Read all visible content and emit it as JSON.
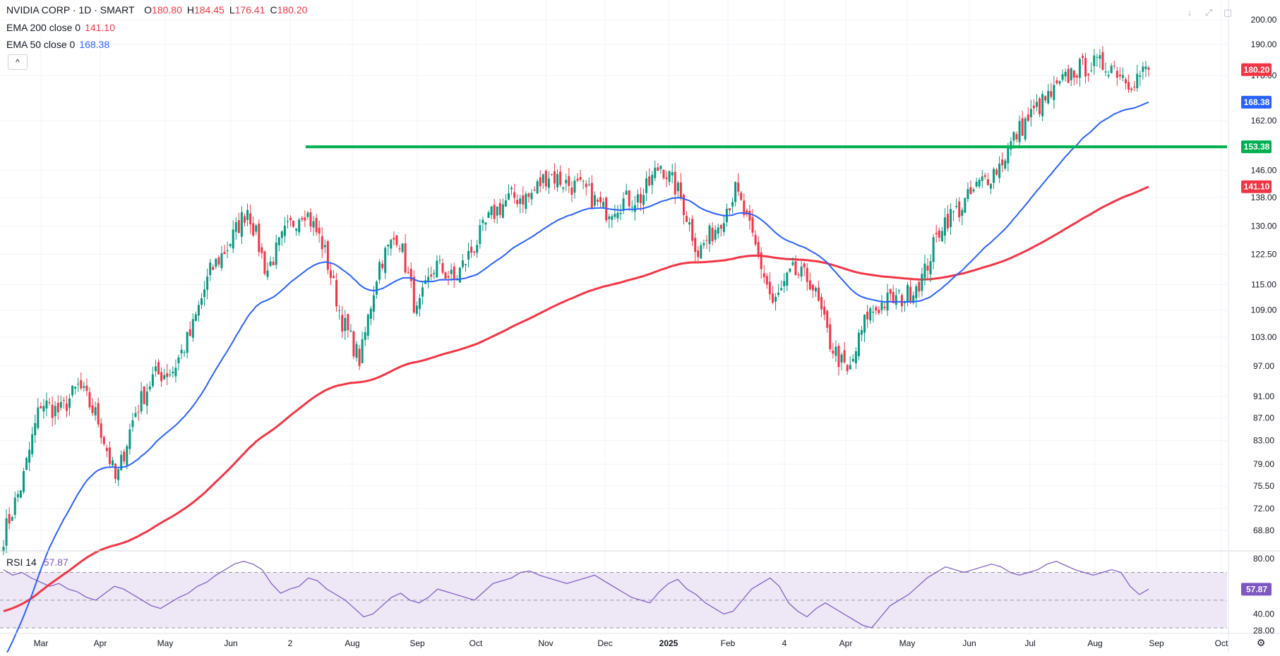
{
  "header": {
    "title": "NVIDIA CORP · 1D · SMART",
    "ohlc": [
      {
        "k": "O",
        "v": "180.80"
      },
      {
        "k": "H",
        "v": "184.45"
      },
      {
        "k": "L",
        "v": "176.41"
      },
      {
        "k": "C",
        "v": "180.20"
      }
    ],
    "indicators": [
      {
        "label": "EMA 200 close 0",
        "value": "141.10",
        "color": "#f23645"
      },
      {
        "label": "EMA 50 close 0",
        "value": "168.38",
        "color": "#2962ff"
      }
    ],
    "collapse_glyph": "^",
    "buttons": [
      {
        "name": "arrow-down-icon",
        "glyph": "↓"
      },
      {
        "name": "maximize-icon",
        "glyph": "⤢"
      },
      {
        "name": "restore-icon",
        "glyph": "▢"
      }
    ]
  },
  "rsi": {
    "label": "RSI 14",
    "value": "57.87"
  },
  "colors": {
    "up": "#089981",
    "down": "#f23645",
    "ema200": "#f23645",
    "ema50": "#2962ff",
    "level": "#00b050",
    "rsi": "#7e57c2",
    "rsi_band": "#ede7f6",
    "grid": "#f0f3fa",
    "axis_text": "#131722"
  },
  "chart_data": [
    {
      "type": "candlestick",
      "title": "NVIDIA CORP · 1D · SMART",
      "x_ticks": [
        "Mar",
        "Apr",
        "May",
        "Jun",
        "2",
        "Aug",
        "Sep",
        "Oct",
        "Nov",
        "Dec",
        "2025",
        "Feb",
        "4",
        "Apr",
        "May",
        "Jun",
        "Jul",
        "Aug",
        "Sep",
        "Oct"
      ],
      "y_ticks": [
        200.0,
        190.0,
        178.0,
        162.0,
        146.0,
        138.0,
        130.0,
        122.5,
        115.0,
        109.0,
        103.0,
        97.0,
        91.0,
        87.0,
        83.0,
        79.0,
        75.5,
        72.0,
        68.8
      ],
      "y_scale": "log",
      "ylim": [
        66.0,
        203.0
      ],
      "price_anchors": [
        [
          "Mar",
          68
        ],
        [
          "Mar",
          76
        ],
        [
          "Mar",
          90
        ],
        [
          "Mar",
          88
        ],
        [
          "Apr",
          93
        ],
        [
          "Apr",
          87
        ],
        [
          "Apr",
          76
        ],
        [
          "May",
          88
        ],
        [
          "May",
          95
        ],
        [
          "May",
          96
        ],
        [
          "Jun",
          104
        ],
        [
          "Jun",
          118
        ],
        [
          "Jun",
          125
        ],
        [
          "Jun",
          135
        ],
        [
          "2",
          118
        ],
        [
          "2",
          128
        ],
        [
          "2",
          135
        ],
        [
          "2",
          125
        ],
        [
          "Aug",
          107
        ],
        [
          "Aug",
          98
        ],
        [
          "Aug",
          120
        ],
        [
          "Aug",
          128
        ],
        [
          "Sep",
          108
        ],
        [
          "Sep",
          120
        ],
        [
          "Sep",
          116
        ],
        [
          "Oct",
          124
        ],
        [
          "Oct",
          133
        ],
        [
          "Oct",
          138
        ],
        [
          "Nov",
          138
        ],
        [
          "Nov",
          145
        ],
        [
          "Nov",
          142
        ],
        [
          "Dec",
          140
        ],
        [
          "Dec",
          134
        ],
        [
          "Dec",
          137
        ],
        [
          "2025",
          138
        ],
        [
          "2025",
          148
        ],
        [
          "2025",
          139
        ],
        [
          "Feb",
          123
        ],
        [
          "Feb",
          130
        ],
        [
          "Feb",
          140
        ],
        [
          "Feb",
          125
        ],
        [
          "4",
          110
        ],
        [
          "4",
          118
        ],
        [
          "4",
          116
        ],
        [
          "Apr",
          102
        ],
        [
          "Apr",
          95
        ],
        [
          "Apr",
          108
        ],
        [
          "Apr",
          111
        ],
        [
          "May",
          112
        ],
        [
          "May",
          117
        ],
        [
          "May",
          131
        ],
        [
          "Jun",
          135
        ],
        [
          "Jun",
          142
        ],
        [
          "Jun",
          147
        ],
        [
          "Jul",
          158
        ],
        [
          "Jul",
          166
        ],
        [
          "Jul",
          172
        ],
        [
          "Aug",
          180
        ],
        [
          "Aug",
          182
        ],
        [
          "Aug",
          182
        ],
        [
          "Aug",
          176
        ],
        [
          "Aug",
          180.2
        ]
      ],
      "current_price": 180.2,
      "series": [
        {
          "name": "EMA 200 close 0",
          "last": 141.1
        },
        {
          "name": "EMA 50 close 0",
          "last": 168.38
        }
      ],
      "horizontal_level": 153.38,
      "price_labels": [
        "180.20",
        "168.38",
        "153.38",
        "141.10"
      ],
      "grid": true
    },
    {
      "type": "line",
      "name": "RSI 14",
      "y_ticks": [
        80.0,
        40.0,
        28.0
      ],
      "ylim": [
        26,
        85
      ],
      "bands": [
        30,
        70
      ],
      "current_value": 57.87,
      "value_label": "57.87",
      "values": [
        72,
        68,
        70,
        66,
        63,
        60,
        62,
        58,
        56,
        52,
        50,
        55,
        60,
        58,
        54,
        50,
        46,
        44,
        48,
        52,
        55,
        60,
        63,
        68,
        72,
        76,
        78,
        76,
        72,
        62,
        55,
        58,
        60,
        66,
        64,
        58,
        54,
        50,
        44,
        38,
        40,
        46,
        52,
        55,
        50,
        48,
        52,
        58,
        56,
        54,
        52,
        50,
        56,
        62,
        64,
        66,
        70,
        71,
        68,
        66,
        64,
        62,
        64,
        66,
        68,
        64,
        60,
        56,
        52,
        50,
        48,
        56,
        62,
        65,
        58,
        54,
        48,
        44,
        40,
        42,
        50,
        58,
        62,
        66,
        60,
        48,
        42,
        38,
        44,
        48,
        44,
        40,
        36,
        32,
        30,
        38,
        46,
        50,
        54,
        60,
        66,
        70,
        74,
        72,
        70,
        72,
        74,
        76,
        74,
        70,
        68,
        70,
        72,
        76,
        78,
        75,
        72,
        70,
        68,
        70,
        72,
        70,
        60,
        54,
        58
      ]
    }
  ]
}
